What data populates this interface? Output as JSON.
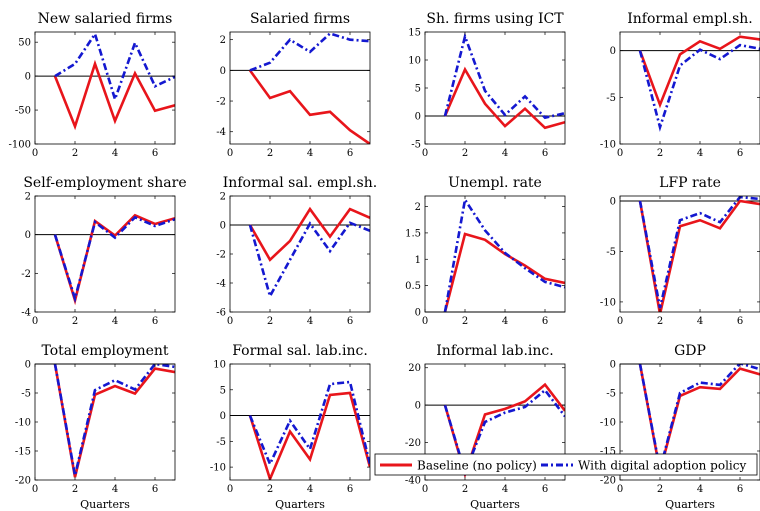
{
  "figure": {
    "x_label": "Quarters",
    "colors": {
      "baseline": "#e8151b",
      "digital": "#1418d0",
      "zero_line": "#000000"
    },
    "legend": {
      "placement": "bottom-right",
      "baseline_label": "Baseline (no policy)",
      "digital_label": "With digital adoption policy"
    }
  },
  "chart_data": [
    {
      "type": "line",
      "title": "New salaried firms",
      "x": [
        1,
        2,
        3,
        4,
        5,
        6,
        7
      ],
      "xlim": [
        0,
        7
      ],
      "xticks": [
        0,
        2,
        4,
        6
      ],
      "ylim": [
        -100,
        65
      ],
      "yticks": [
        50,
        0,
        -50,
        -100
      ],
      "series": [
        {
          "name": "Baseline (no policy)",
          "values": [
            0,
            -74,
            18,
            -66,
            4,
            -51,
            -43
          ]
        },
        {
          "name": "With digital adoption policy",
          "values": [
            0,
            18,
            62,
            -34,
            49,
            -15,
            -1
          ]
        }
      ]
    },
    {
      "type": "line",
      "title": "Salaried firms",
      "x": [
        1,
        2,
        3,
        4,
        5,
        6,
        7
      ],
      "xlim": [
        0,
        7
      ],
      "xticks": [
        0,
        2,
        4,
        6
      ],
      "ylim": [
        -4.8,
        2.5
      ],
      "yticks": [
        2,
        0,
        -2,
        -4
      ],
      "series": [
        {
          "name": "Baseline (no policy)",
          "values": [
            0,
            -1.8,
            -1.35,
            -2.9,
            -2.7,
            -3.9,
            -4.8
          ]
        },
        {
          "name": "With digital adoption policy",
          "values": [
            0,
            0.5,
            2.0,
            1.2,
            2.4,
            2.0,
            1.9
          ]
        }
      ]
    },
    {
      "type": "line",
      "title": "Sh. firms using ICT",
      "x": [
        1,
        2,
        3,
        4,
        5,
        6,
        7
      ],
      "xlim": [
        0,
        7
      ],
      "xticks": [
        0,
        2,
        4,
        6
      ],
      "ylim": [
        -5,
        15
      ],
      "yticks": [
        15,
        10,
        5,
        0,
        -5
      ],
      "series": [
        {
          "name": "Baseline (no policy)",
          "values": [
            0,
            8.3,
            2.2,
            -1.8,
            1.3,
            -2.1,
            -1.1
          ]
        },
        {
          "name": "With digital adoption policy",
          "values": [
            0,
            14.2,
            4.5,
            0.2,
            3.5,
            -0.3,
            0.5
          ]
        }
      ]
    },
    {
      "type": "line",
      "title": "Informal empl.sh.",
      "x": [
        1,
        2,
        3,
        4,
        5,
        6,
        7
      ],
      "xlim": [
        0,
        7
      ],
      "xticks": [
        0,
        2,
        4,
        6
      ],
      "ylim": [
        -10,
        2
      ],
      "yticks": [
        0,
        -5,
        -10
      ],
      "series": [
        {
          "name": "Baseline (no policy)",
          "values": [
            0,
            -5.8,
            -0.4,
            1.0,
            0.2,
            1.5,
            1.2
          ]
        },
        {
          "name": "With digital adoption policy",
          "values": [
            0,
            -8.2,
            -1.6,
            0.1,
            -0.9,
            0.6,
            0.2
          ]
        }
      ]
    },
    {
      "type": "line",
      "title": "Self-employment share",
      "x": [
        1,
        2,
        3,
        4,
        5,
        6,
        7
      ],
      "xlim": [
        0,
        7
      ],
      "xticks": [
        0,
        2,
        4,
        6
      ],
      "ylim": [
        -4,
        2
      ],
      "yticks": [
        2,
        0,
        -2,
        -4
      ],
      "series": [
        {
          "name": "Baseline (no policy)",
          "values": [
            0,
            -3.4,
            0.7,
            -0.05,
            1.0,
            0.55,
            0.85
          ]
        },
        {
          "name": "With digital adoption policy",
          "values": [
            0,
            -3.3,
            0.65,
            -0.15,
            0.9,
            0.45,
            0.8
          ]
        }
      ]
    },
    {
      "type": "line",
      "title": "Informal sal. empl.sh.",
      "x": [
        1,
        2,
        3,
        4,
        5,
        6,
        7
      ],
      "xlim": [
        0,
        7
      ],
      "xticks": [
        0,
        2,
        4,
        6
      ],
      "ylim": [
        -6,
        2
      ],
      "yticks": [
        2,
        0,
        -2,
        -4,
        -6
      ],
      "series": [
        {
          "name": "Baseline (no policy)",
          "values": [
            0,
            -2.4,
            -1.1,
            1.1,
            -0.8,
            1.1,
            0.5
          ]
        },
        {
          "name": "With digital adoption policy",
          "values": [
            0,
            -4.9,
            -2.4,
            0.1,
            -1.8,
            0.15,
            -0.4
          ]
        }
      ]
    },
    {
      "type": "line",
      "title": "Unempl. rate",
      "x": [
        1,
        2,
        3,
        4,
        5,
        6,
        7
      ],
      "xlim": [
        0,
        7
      ],
      "xticks": [
        0,
        2,
        4,
        6
      ],
      "ylim": [
        0,
        2.2
      ],
      "yticks": [
        2,
        1.5,
        1,
        0.5,
        0
      ],
      "series": [
        {
          "name": "Baseline (no policy)",
          "values": [
            0,
            1.48,
            1.37,
            1.1,
            0.88,
            0.63,
            0.55
          ]
        },
        {
          "name": "With digital adoption policy",
          "values": [
            0,
            2.13,
            1.55,
            1.12,
            0.83,
            0.57,
            0.47
          ]
        }
      ]
    },
    {
      "type": "line",
      "title": "LFP rate",
      "x": [
        1,
        2,
        3,
        4,
        5,
        6,
        7
      ],
      "xlim": [
        0,
        7
      ],
      "xticks": [
        0,
        2,
        4,
        6
      ],
      "ylim": [
        -11,
        0.5
      ],
      "yticks": [
        0,
        -5,
        -10
      ],
      "series": [
        {
          "name": "Baseline (no policy)",
          "values": [
            0,
            -11.2,
            -2.5,
            -1.9,
            -2.7,
            0.0,
            -0.3
          ]
        },
        {
          "name": "With digital adoption policy",
          "values": [
            0,
            -10.6,
            -1.9,
            -1.2,
            -2.1,
            0.4,
            0.2
          ]
        }
      ]
    },
    {
      "type": "line",
      "title": "Total employment",
      "x": [
        1,
        2,
        3,
        4,
        5,
        6,
        7
      ],
      "xlim": [
        0,
        7
      ],
      "xticks": [
        0,
        2,
        4,
        6
      ],
      "ylim": [
        -20,
        0
      ],
      "yticks": [
        0,
        -5,
        -10,
        -15,
        -20
      ],
      "series": [
        {
          "name": "Baseline (no policy)",
          "values": [
            0,
            -19.5,
            -5.3,
            -3.8,
            -5.1,
            -0.8,
            -1.4
          ]
        },
        {
          "name": "With digital adoption policy",
          "values": [
            0,
            -19.2,
            -4.5,
            -2.8,
            -4.4,
            0.0,
            -0.5
          ]
        }
      ]
    },
    {
      "type": "line",
      "title": "Formal sal. lab.inc.",
      "x": [
        1,
        2,
        3,
        4,
        5,
        6,
        7
      ],
      "xlim": [
        0,
        7
      ],
      "xticks": [
        0,
        2,
        4,
        6
      ],
      "ylim": [
        -12.5,
        10
      ],
      "yticks": [
        10,
        5,
        0,
        -5,
        -10
      ],
      "series": [
        {
          "name": "Baseline (no policy)",
          "values": [
            0,
            -12.3,
            -3.1,
            -8.5,
            4.0,
            4.4,
            -10.0
          ]
        },
        {
          "name": "With digital adoption policy",
          "values": [
            0,
            -9.4,
            -1.0,
            -6.5,
            6.1,
            6.5,
            -9.5
          ]
        }
      ]
    },
    {
      "type": "line",
      "title": "Informal lab.inc.",
      "x": [
        1,
        2,
        3,
        4,
        5,
        6,
        7
      ],
      "xlim": [
        0,
        7
      ],
      "xticks": [
        0,
        2,
        4,
        6
      ],
      "ylim": [
        -40,
        22
      ],
      "yticks": [
        20,
        0,
        -20,
        -40
      ],
      "series": [
        {
          "name": "Baseline (no policy)",
          "values": [
            0,
            -37,
            -5,
            -2,
            2,
            11,
            -3
          ]
        },
        {
          "name": "With digital adoption policy",
          "values": [
            0,
            -36,
            -9,
            -4,
            -1,
            8,
            -6
          ]
        }
      ]
    },
    {
      "type": "line",
      "title": "GDP",
      "x": [
        1,
        2,
        3,
        4,
        5,
        6,
        7
      ],
      "xlim": [
        0,
        7
      ],
      "xticks": [
        0,
        2,
        4,
        6
      ],
      "ylim": [
        -20,
        0
      ],
      "yticks": [
        0,
        -5,
        -10,
        -15,
        -20
      ],
      "series": [
        {
          "name": "Baseline (no policy)",
          "values": [
            0,
            -18.5,
            -5.5,
            -4.0,
            -4.3,
            -0.8,
            -1.8
          ]
        },
        {
          "name": "With digital adoption policy",
          "values": [
            0,
            -18.2,
            -5.0,
            -3.2,
            -3.6,
            0.1,
            -0.9
          ]
        }
      ]
    }
  ]
}
